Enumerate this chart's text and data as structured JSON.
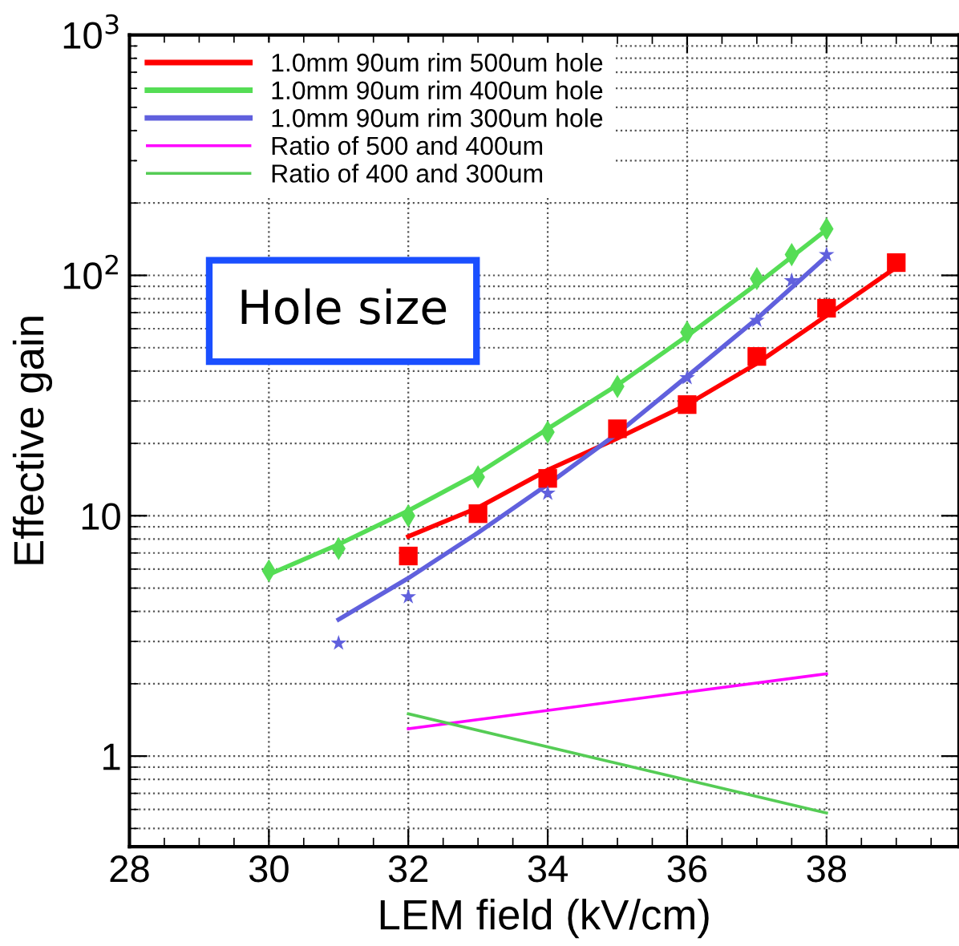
{
  "chart_data": {
    "type": "scatter",
    "xlabel": "LEM field (kV/cm)",
    "ylabel": "Effective gain",
    "log": "y",
    "xlim": [
      28,
      39.9
    ],
    "xticks": [
      28,
      30,
      32,
      34,
      36,
      38
    ],
    "ylim": [
      0.42,
      1000
    ],
    "yticks": [
      1,
      10,
      {
        "value": 100,
        "label": "10$^{2}$"
      },
      {
        "value": 1000,
        "label": "10$^{3}$"
      }
    ],
    "grid": true,
    "legend": "top left",
    "annotations": [
      "Hole size"
    ],
    "series": [
      {
        "name": "1.0mm 90um rim 500um hole",
        "marker": "square",
        "color": "#ff0000",
        "x": [
          32,
          33,
          34,
          35,
          36,
          37,
          38,
          39
        ],
        "values": [
          6.8,
          10.2,
          14.3,
          23,
          29,
          46,
          73,
          113
        ]
      },
      {
        "name": "1.0mm 90um rim 400um hole",
        "marker": "diamond",
        "color": "#55dd55",
        "x": [
          30,
          31,
          32,
          33,
          34,
          35,
          36,
          37,
          37.5,
          38
        ],
        "values": [
          5.9,
          7.3,
          10,
          14.5,
          22.3,
          34.5,
          58,
          97,
          122,
          156
        ]
      },
      {
        "name": "1.0mm 90um rim 300um hole",
        "marker": "star",
        "color": "#6060dd",
        "x": [
          31,
          32,
          34,
          36,
          37,
          37.5,
          38
        ],
        "values": [
          2.95,
          4.6,
          12.4,
          37.5,
          65,
          95,
          122
        ]
      },
      {
        "name": "Ratio of 500 and 400um",
        "type": "line",
        "color": "#ff00ff",
        "x": [
          32,
          38
        ],
        "values": [
          1.3,
          2.2
        ]
      },
      {
        "name": "Ratio of 400 and 300um",
        "type": "line",
        "color": "#55cc55",
        "x": [
          32,
          38
        ],
        "values": [
          1.5,
          0.58
        ]
      },
      {
        "type": "line",
        "color": "#ff0000",
        "x": [
          32,
          33,
          34,
          35,
          36,
          37,
          38,
          39
        ],
        "values": [
          8.2,
          10.8,
          15.5,
          21,
          29,
          43,
          68,
          108
        ]
      },
      {
        "type": "line",
        "color": "#55dd55",
        "x": [
          30,
          31,
          32,
          33,
          34,
          35,
          36,
          37,
          38
        ],
        "values": [
          5.7,
          7.6,
          10.5,
          15,
          23,
          35,
          56,
          92,
          155
        ]
      },
      {
        "type": "line",
        "color": "#6060dd",
        "x": [
          31,
          32,
          33,
          34,
          35,
          36,
          37,
          38
        ],
        "values": [
          3.7,
          5.5,
          8.5,
          13.5,
          22,
          38,
          66,
          120
        ]
      }
    ]
  }
}
